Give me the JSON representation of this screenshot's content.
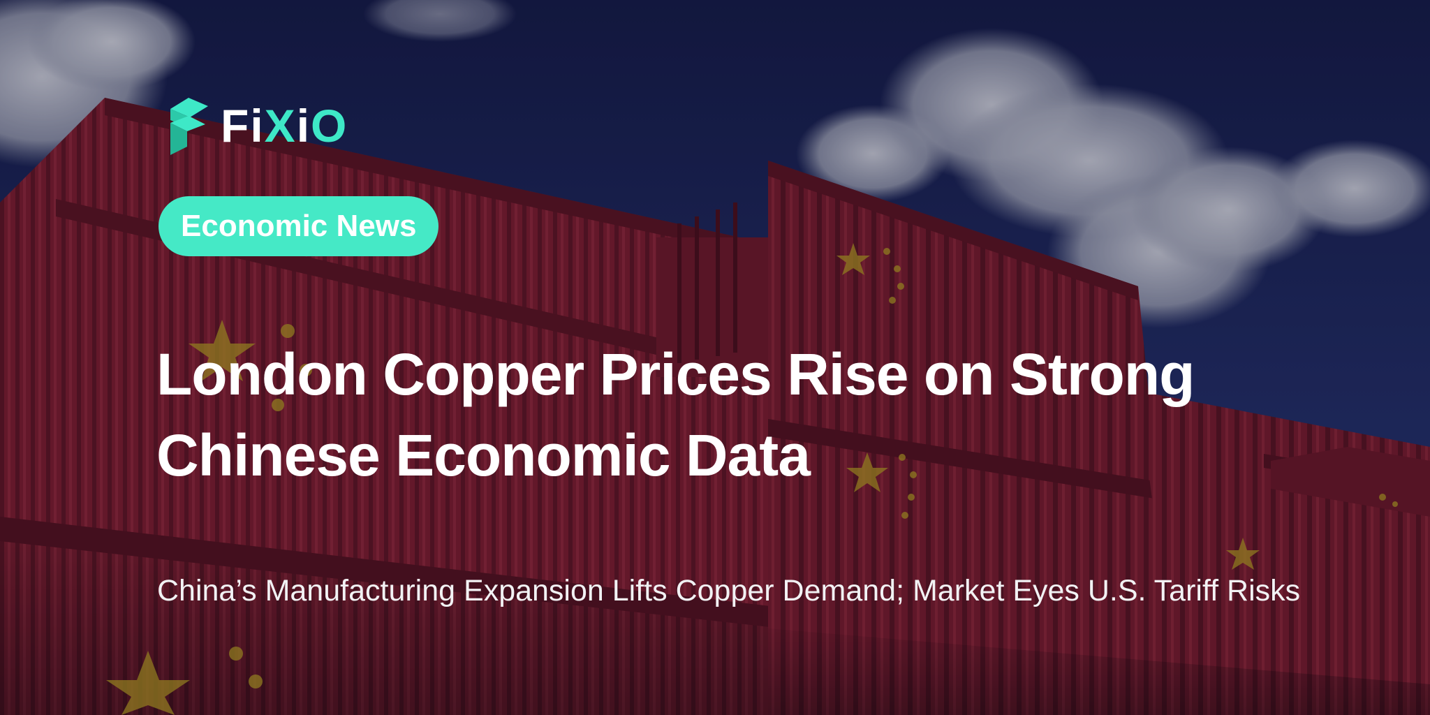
{
  "brand": {
    "logo_icon": "fixio-logo-icon",
    "name_part1": "Fi",
    "name_part2": "X",
    "name_part3": "i",
    "name_part4": "O",
    "accent_color": "#3ee8c7"
  },
  "category_badge": {
    "label": "Economic News",
    "color": "#45e9c6"
  },
  "article": {
    "title": "London Copper Prices Rise on Strong Chinese Economic Data",
    "subtitle": "China’s Manufacturing Expansion Lifts Copper Demand; Market Eyes U.S. Tariff Risks"
  },
  "background": {
    "sky_color": "#1b2450",
    "container_color": "#7e1d2c",
    "star_color": "#b49a1e"
  }
}
